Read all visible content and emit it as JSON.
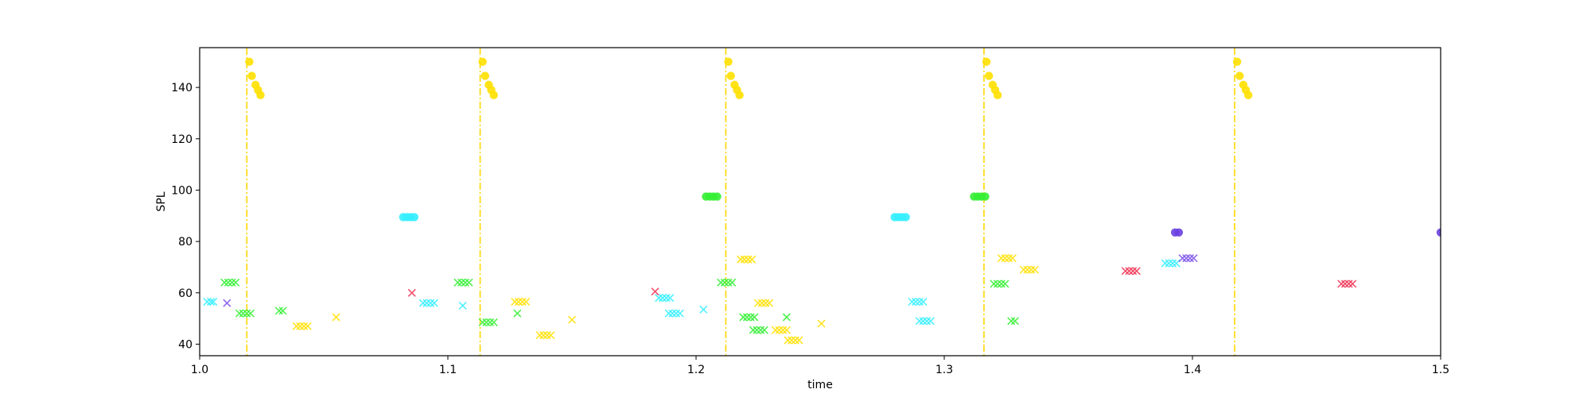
{
  "chart_data": {
    "type": "scatter",
    "title": "",
    "xlabel": "time",
    "ylabel": "SPL",
    "xlim": [
      1.0,
      1.5
    ],
    "ylim": [
      35.5,
      155.5
    ],
    "xticks": [
      "1.0",
      "1.1",
      "1.2",
      "1.3",
      "1.4",
      "1.5"
    ],
    "yticks": [
      "40",
      "60",
      "80",
      "100",
      "120",
      "140"
    ],
    "grid": false,
    "legend": "none",
    "vlines": {
      "color": "#FFD700",
      "style": "dash-dot",
      "x": [
        1.019,
        1.113,
        1.212,
        1.316,
        1.417
      ]
    },
    "series": [
      {
        "marker": "circle",
        "color": "#FFE000",
        "points": [
          [
            1.02,
            150
          ],
          [
            1.021,
            144.5
          ],
          [
            1.0225,
            141
          ],
          [
            1.0235,
            139
          ],
          [
            1.0245,
            137
          ],
          [
            1.114,
            150
          ],
          [
            1.115,
            144.5
          ],
          [
            1.1165,
            141
          ],
          [
            1.1175,
            139
          ],
          [
            1.1185,
            137
          ],
          [
            1.213,
            150
          ],
          [
            1.214,
            144.5
          ],
          [
            1.2155,
            141
          ],
          [
            1.2165,
            139
          ],
          [
            1.2175,
            137
          ],
          [
            1.317,
            150
          ],
          [
            1.318,
            144.5
          ],
          [
            1.3195,
            141
          ],
          [
            1.3205,
            139
          ],
          [
            1.3215,
            137
          ],
          [
            1.418,
            150
          ],
          [
            1.419,
            144.5
          ],
          [
            1.4205,
            141
          ],
          [
            1.4215,
            139
          ],
          [
            1.4225,
            137
          ]
        ]
      },
      {
        "marker": "circle",
        "color": "#33EE33",
        "points": [
          [
            1.204,
            97.5
          ],
          [
            1.2055,
            97.5
          ],
          [
            1.207,
            97.5
          ],
          [
            1.2085,
            97.5
          ],
          [
            1.312,
            97.5
          ],
          [
            1.3135,
            97.5
          ],
          [
            1.315,
            97.5
          ],
          [
            1.3165,
            97.5
          ]
        ]
      },
      {
        "marker": "circle",
        "color": "#33EEFF",
        "points": [
          [
            1.082,
            89.5
          ],
          [
            1.0835,
            89.5
          ],
          [
            1.085,
            89.5
          ],
          [
            1.0865,
            89.5
          ],
          [
            1.28,
            89.5
          ],
          [
            1.2815,
            89.5
          ],
          [
            1.283,
            89.5
          ],
          [
            1.2845,
            89.5
          ]
        ]
      },
      {
        "marker": "circle",
        "color": "#6A3FE0",
        "points": [
          [
            1.393,
            83.5
          ],
          [
            1.3945,
            83.5
          ],
          [
            1.5,
            83.5
          ]
        ]
      },
      {
        "marker": "x",
        "color": "#33EEFF",
        "points": [
          [
            1.003,
            56.5
          ],
          [
            1.0045,
            56.5
          ],
          [
            1.0055,
            56.5
          ],
          [
            1.09,
            56
          ],
          [
            1.0915,
            56
          ],
          [
            1.093,
            56
          ],
          [
            1.0945,
            56
          ],
          [
            1.106,
            55
          ],
          [
            1.185,
            58
          ],
          [
            1.1865,
            58
          ],
          [
            1.188,
            58
          ],
          [
            1.1895,
            58
          ],
          [
            1.189,
            52
          ],
          [
            1.1905,
            52
          ],
          [
            1.192,
            52
          ],
          [
            1.1935,
            52
          ],
          [
            1.203,
            53.5
          ],
          [
            1.287,
            56.5
          ],
          [
            1.2885,
            56.5
          ],
          [
            1.29,
            56.5
          ],
          [
            1.2915,
            56.5
          ],
          [
            1.29,
            49
          ],
          [
            1.2915,
            49
          ],
          [
            1.293,
            49
          ],
          [
            1.2945,
            49
          ],
          [
            1.389,
            71.5
          ],
          [
            1.3905,
            71.5
          ],
          [
            1.392,
            71.5
          ],
          [
            1.3935,
            71.5
          ]
        ]
      },
      {
        "marker": "x",
        "color": "#33EE33",
        "points": [
          [
            1.01,
            64
          ],
          [
            1.0115,
            64
          ],
          [
            1.013,
            64
          ],
          [
            1.0145,
            64
          ],
          [
            1.016,
            52
          ],
          [
            1.0175,
            52
          ],
          [
            1.019,
            52
          ],
          [
            1.0205,
            52
          ],
          [
            1.032,
            53
          ],
          [
            1.0335,
            53
          ],
          [
            1.104,
            64
          ],
          [
            1.1055,
            64
          ],
          [
            1.107,
            64
          ],
          [
            1.1085,
            64
          ],
          [
            1.114,
            48.5
          ],
          [
            1.1155,
            48.5
          ],
          [
            1.117,
            48.5
          ],
          [
            1.1185,
            48.5
          ],
          [
            1.128,
            52
          ],
          [
            1.21,
            64
          ],
          [
            1.2115,
            64
          ],
          [
            1.213,
            64
          ],
          [
            1.2145,
            64
          ],
          [
            1.219,
            50.5
          ],
          [
            1.2205,
            50.5
          ],
          [
            1.222,
            50.5
          ],
          [
            1.2235,
            50.5
          ],
          [
            1.223,
            45.5
          ],
          [
            1.2245,
            45.5
          ],
          [
            1.226,
            45.5
          ],
          [
            1.2275,
            45.5
          ],
          [
            1.2365,
            50.5
          ],
          [
            1.32,
            63.5
          ],
          [
            1.3215,
            63.5
          ],
          [
            1.323,
            63.5
          ],
          [
            1.3245,
            63.5
          ],
          [
            1.327,
            49
          ],
          [
            1.3285,
            49
          ]
        ]
      },
      {
        "marker": "x",
        "color": "#FFE000",
        "points": [
          [
            1.039,
            47
          ],
          [
            1.0405,
            47
          ],
          [
            1.042,
            47
          ],
          [
            1.0435,
            47
          ],
          [
            1.055,
            50.5
          ],
          [
            1.127,
            56.5
          ],
          [
            1.1285,
            56.5
          ],
          [
            1.13,
            56.5
          ],
          [
            1.1315,
            56.5
          ],
          [
            1.137,
            43.5
          ],
          [
            1.1385,
            43.5
          ],
          [
            1.14,
            43.5
          ],
          [
            1.1415,
            43.5
          ],
          [
            1.15,
            49.5
          ],
          [
            1.218,
            73
          ],
          [
            1.2195,
            73
          ],
          [
            1.221,
            73
          ],
          [
            1.2225,
            73
          ],
          [
            1.225,
            56
          ],
          [
            1.2265,
            56
          ],
          [
            1.228,
            56
          ],
          [
            1.2295,
            56
          ],
          [
            1.232,
            45.5
          ],
          [
            1.2335,
            45.5
          ],
          [
            1.235,
            45.5
          ],
          [
            1.2365,
            45.5
          ],
          [
            1.237,
            41.5
          ],
          [
            1.2385,
            41.5
          ],
          [
            1.24,
            41.5
          ],
          [
            1.2415,
            41.5
          ],
          [
            1.2505,
            48
          ],
          [
            1.323,
            73.5
          ],
          [
            1.3245,
            73.5
          ],
          [
            1.326,
            73.5
          ],
          [
            1.3275,
            73.5
          ],
          [
            1.332,
            69
          ],
          [
            1.3335,
            69
          ],
          [
            1.335,
            69
          ],
          [
            1.3365,
            69
          ]
        ]
      },
      {
        "marker": "x",
        "color": "#EE3355",
        "points": [
          [
            1.0855,
            60
          ],
          [
            1.1835,
            60.5
          ],
          [
            1.373,
            68.5
          ],
          [
            1.3745,
            68.5
          ],
          [
            1.376,
            68.5
          ],
          [
            1.3775,
            68.5
          ],
          [
            1.46,
            63.5
          ],
          [
            1.4615,
            63.5
          ],
          [
            1.463,
            63.5
          ],
          [
            1.4645,
            63.5
          ]
        ]
      },
      {
        "marker": "x",
        "color": "#7A4FE8",
        "points": [
          [
            1.011,
            56
          ],
          [
            1.396,
            73.5
          ],
          [
            1.3975,
            73.5
          ],
          [
            1.399,
            73.5
          ],
          [
            1.4005,
            73.5
          ]
        ]
      }
    ]
  }
}
